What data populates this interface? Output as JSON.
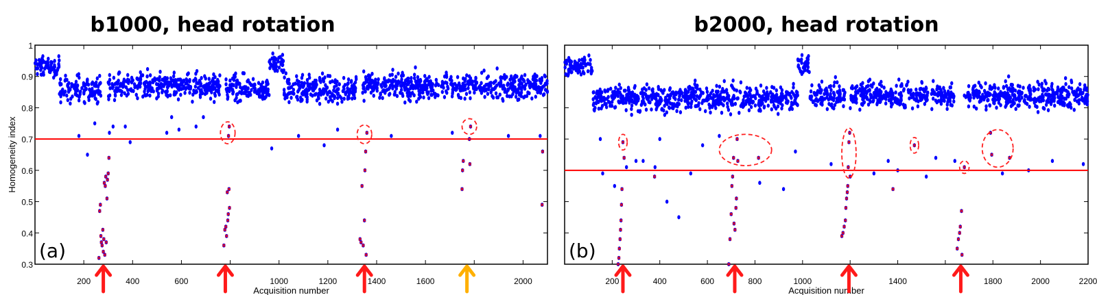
{
  "chart_data": [
    {
      "type": "scatter",
      "title": "b1000, head rotation",
      "panel_label": "(a)",
      "xlabel": "Acquisition number",
      "ylabel": "Homogeneity index",
      "xlim": [
        0,
        2100
      ],
      "ylim": [
        0.3,
        1
      ],
      "xticks": [
        200,
        400,
        600,
        800,
        1000,
        1200,
        1400,
        1600,
        1800,
        2000
      ],
      "xtick_labels": [
        "200",
        "400",
        "600",
        "",
        "1000",
        "1200",
        "1400",
        "1600",
        "",
        "2000"
      ],
      "yticks": [
        0.3,
        0.4,
        0.5,
        0.6,
        0.7,
        0.8,
        0.9,
        1
      ],
      "ytick_labels": [
        "0.3",
        "0.4",
        "0.5",
        "0.6",
        "0.7",
        "0.8",
        "0.9",
        "1"
      ],
      "show_ytick_labels": true,
      "threshold": 0.7,
      "bulk_segments": [
        [
          0,
          100,
          0.93,
          0.03
        ],
        [
          100,
          270,
          0.86,
          0.04
        ],
        [
          300,
          760,
          0.87,
          0.04
        ],
        [
          780,
          960,
          0.86,
          0.04
        ],
        [
          960,
          1020,
          0.94,
          0.03
        ],
        [
          1020,
          1320,
          0.86,
          0.04
        ],
        [
          1340,
          2100,
          0.87,
          0.04
        ]
      ],
      "outliers": [
        [
          180,
          0.71
        ],
        [
          215,
          0.65
        ],
        [
          245,
          0.75
        ],
        [
          305,
          0.72
        ],
        [
          320,
          0.74
        ],
        [
          370,
          0.74
        ],
        [
          390,
          0.69
        ],
        [
          540,
          0.72
        ],
        [
          560,
          0.77
        ],
        [
          590,
          0.73
        ],
        [
          660,
          0.74
        ],
        [
          690,
          0.77
        ],
        [
          970,
          0.67
        ],
        [
          1080,
          0.71
        ],
        [
          1185,
          0.68
        ],
        [
          1240,
          0.73
        ],
        [
          1460,
          0.71
        ],
        [
          1710,
          0.72
        ],
        [
          1940,
          0.71
        ],
        [
          2070,
          0.71
        ]
      ],
      "flagged": [
        [
          262,
          0.32
        ],
        [
          265,
          0.47
        ],
        [
          268,
          0.49
        ],
        [
          270,
          0.39
        ],
        [
          272,
          0.37
        ],
        [
          275,
          0.36
        ],
        [
          278,
          0.41
        ],
        [
          280,
          0.34
        ],
        [
          282,
          0.38
        ],
        [
          284,
          0.56
        ],
        [
          286,
          0.33
        ],
        [
          288,
          0.55
        ],
        [
          290,
          0.58
        ],
        [
          292,
          0.37
        ],
        [
          295,
          0.51
        ],
        [
          297,
          0.57
        ],
        [
          300,
          0.59
        ],
        [
          303,
          0.64
        ],
        [
          774,
          0.36
        ],
        [
          778,
          0.41
        ],
        [
          782,
          0.42
        ],
        [
          785,
          0.39
        ],
        [
          788,
          0.53
        ],
        [
          790,
          0.44
        ],
        [
          792,
          0.46
        ],
        [
          795,
          0.54
        ],
        [
          797,
          0.48
        ],
        [
          793,
          0.71
        ],
        [
          796,
          0.74
        ],
        [
          1332,
          0.38
        ],
        [
          1336,
          0.37
        ],
        [
          1340,
          0.55
        ],
        [
          1345,
          0.36
        ],
        [
          1350,
          0.44
        ],
        [
          1352,
          0.6
        ],
        [
          1355,
          0.66
        ],
        [
          1357,
          0.33
        ],
        [
          1360,
          0.72
        ],
        [
          1750,
          0.54
        ],
        [
          1752,
          0.6
        ],
        [
          1755,
          0.63
        ],
        [
          1780,
          0.7
        ],
        [
          1782,
          0.62
        ],
        [
          1785,
          0.74
        ],
        [
          2078,
          0.49
        ],
        [
          2080,
          0.66
        ]
      ],
      "circles": [
        [
          790,
          0.72,
          30,
          0.035
        ],
        [
          1350,
          0.715,
          30,
          0.03
        ],
        [
          1780,
          0.74,
          30,
          0.025
        ]
      ],
      "arrows": [
        {
          "x": 280,
          "color": "#ff1a1a"
        },
        {
          "x": 780,
          "color": "#ff1a1a"
        },
        {
          "x": 1350,
          "color": "#ff1a1a"
        },
        {
          "x": 1770,
          "color": "#ffb000"
        }
      ]
    },
    {
      "type": "scatter",
      "title": "b2000, head rotation",
      "panel_label": "(b)",
      "xlabel": "Acquisition number",
      "ylabel": "",
      "xlim": [
        0,
        2200
      ],
      "ylim": [
        0.3,
        1
      ],
      "xticks": [
        200,
        400,
        600,
        800,
        1000,
        1200,
        1400,
        1600,
        1800,
        2000,
        2200
      ],
      "xtick_labels": [
        "200",
        "400",
        "600",
        "800",
        "1000",
        "",
        "1400",
        "",
        "1800",
        "2000",
        "2200"
      ],
      "yticks": [
        0.3,
        0.4,
        0.5,
        0.6,
        0.7,
        0.8,
        0.9,
        1
      ],
      "ytick_labels": [],
      "show_ytick_labels": false,
      "threshold": 0.6,
      "bulk_segments": [
        [
          0,
          120,
          0.93,
          0.03
        ],
        [
          120,
          980,
          0.83,
          0.04
        ],
        [
          980,
          1030,
          0.94,
          0.03
        ],
        [
          1030,
          1180,
          0.84,
          0.04
        ],
        [
          1200,
          1640,
          0.84,
          0.04
        ],
        [
          1680,
          2200,
          0.84,
          0.04
        ]
      ],
      "outliers": [
        [
          150,
          0.7
        ],
        [
          160,
          0.59
        ],
        [
          210,
          0.55
        ],
        [
          260,
          0.61
        ],
        [
          300,
          0.63
        ],
        [
          330,
          0.63
        ],
        [
          380,
          0.61
        ],
        [
          400,
          0.7
        ],
        [
          430,
          0.5
        ],
        [
          480,
          0.45
        ],
        [
          530,
          0.59
        ],
        [
          580,
          0.68
        ],
        [
          650,
          0.71
        ],
        [
          820,
          0.56
        ],
        [
          920,
          0.54
        ],
        [
          970,
          0.66
        ],
        [
          1120,
          0.62
        ],
        [
          1300,
          0.59
        ],
        [
          1360,
          0.63
        ],
        [
          1400,
          0.6
        ],
        [
          1520,
          0.58
        ],
        [
          1560,
          0.64
        ],
        [
          1640,
          0.63
        ],
        [
          1840,
          0.59
        ],
        [
          1950,
          0.6
        ],
        [
          2050,
          0.63
        ],
        [
          2180,
          0.62
        ]
      ],
      "flagged": [
        [
          225,
          0.3
        ],
        [
          228,
          0.32
        ],
        [
          230,
          0.35
        ],
        [
          233,
          0.38
        ],
        [
          235,
          0.41
        ],
        [
          237,
          0.44
        ],
        [
          239,
          0.49
        ],
        [
          241,
          0.54
        ],
        [
          245,
          0.69
        ],
        [
          250,
          0.64
        ],
        [
          378,
          0.58
        ],
        [
          690,
          0.3
        ],
        [
          695,
          0.38
        ],
        [
          700,
          0.46
        ],
        [
          703,
          0.55
        ],
        [
          706,
          0.58
        ],
        [
          710,
          0.64
        ],
        [
          712,
          0.43
        ],
        [
          716,
          0.41
        ],
        [
          720,
          0.48
        ],
        [
          722,
          0.51
        ],
        [
          725,
          0.7
        ],
        [
          728,
          0.63
        ],
        [
          815,
          0.64
        ],
        [
          1165,
          0.39
        ],
        [
          1170,
          0.4
        ],
        [
          1175,
          0.42
        ],
        [
          1180,
          0.44
        ],
        [
          1182,
          0.48
        ],
        [
          1185,
          0.51
        ],
        [
          1188,
          0.53
        ],
        [
          1190,
          0.55
        ],
        [
          1192,
          0.61
        ],
        [
          1195,
          0.69
        ],
        [
          1198,
          0.72
        ],
        [
          1200,
          0.58
        ],
        [
          1380,
          0.54
        ],
        [
          1470,
          0.68
        ],
        [
          1650,
          0.35
        ],
        [
          1655,
          0.38
        ],
        [
          1660,
          0.4
        ],
        [
          1663,
          0.42
        ],
        [
          1668,
          0.47
        ],
        [
          1670,
          0.33
        ],
        [
          1680,
          0.61
        ],
        [
          1790,
          0.72
        ],
        [
          1795,
          0.65
        ],
        [
          1870,
          0.64
        ]
      ],
      "circles": [
        [
          245,
          0.69,
          18,
          0.025
        ],
        [
          760,
          0.665,
          110,
          0.05
        ],
        [
          1195,
          0.655,
          30,
          0.08
        ],
        [
          1470,
          0.68,
          18,
          0.025
        ],
        [
          1680,
          0.61,
          20,
          0.02
        ],
        [
          1820,
          0.67,
          65,
          0.06
        ]
      ],
      "arrows": [
        {
          "x": 245,
          "color": "#ff1a1a"
        },
        {
          "x": 715,
          "color": "#ff1a1a"
        },
        {
          "x": 1195,
          "color": "#ff1a1a"
        },
        {
          "x": 1665,
          "color": "#ff1a1a"
        }
      ]
    }
  ],
  "colors": {
    "points": "#0000ff",
    "flag": "#ff0000",
    "threshold": "#ff0000"
  }
}
